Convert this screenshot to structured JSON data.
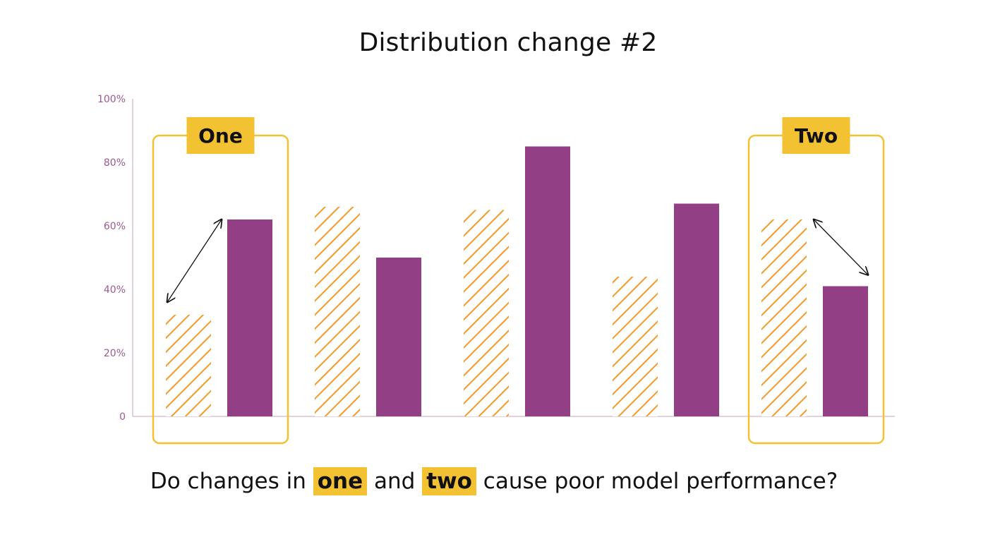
{
  "title": "Distribution change #2",
  "chart_data": {
    "type": "bar",
    "categories": [
      "",
      "",
      "",
      "",
      ""
    ],
    "series": [
      {
        "values": [
          32,
          66,
          65,
          44,
          62
        ]
      },
      {
        "values": [
          62,
          50,
          85,
          67,
          41
        ]
      }
    ],
    "ylim": [
      0,
      100
    ],
    "yticks": [
      "0",
      "20%",
      "40%",
      "60%",
      "80%",
      "100%"
    ],
    "callouts": [
      {
        "label": "One",
        "category_index": 0
      },
      {
        "label": "Two",
        "category_index": 4
      }
    ]
  },
  "question": {
    "before": "Do changes in ",
    "first": "one",
    "middle": " and ",
    "second": "two",
    "after": " cause poor model performance?"
  },
  "colors": {
    "hatched_series": "#f39a2a",
    "solid_series": "#933f85",
    "callout": "#f2c233",
    "axis": "#c9a3bd",
    "tick_text": "#9b5a8e"
  }
}
